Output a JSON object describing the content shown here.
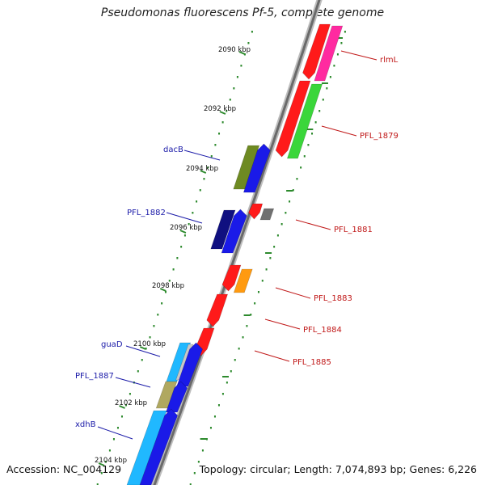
{
  "title": "Pseudomonas fluorescens Pf-5, complete genome",
  "footer": {
    "accession": "Accession: NC_004129",
    "topology": "Topology: circular; Length: 7,074,893 bp; Genes: 6,226"
  },
  "scale_ticks": [
    "2090 kbp",
    "2092 kbp",
    "2094 kbp",
    "2096 kbp",
    "2098 kbp",
    "2100 kbp",
    "2102 kbp",
    "2104 kbp"
  ],
  "genes_left": [
    {
      "label": "dacB"
    },
    {
      "label": "PFL_1882"
    },
    {
      "label": "guaD"
    },
    {
      "label": "PFL_1887"
    },
    {
      "label": "xdhB"
    }
  ],
  "genes_right": [
    {
      "label": "rlmL"
    },
    {
      "label": "PFL_1879"
    },
    {
      "label": "PFL_1881"
    },
    {
      "label": "PFL_1883"
    },
    {
      "label": "PFL_1884"
    },
    {
      "label": "PFL_1885"
    }
  ],
  "colors": {
    "backbone": "#8a8a8a",
    "tick_dots": "#2d8a2d",
    "left_label": "#1a1aa8",
    "right_label": "#c01818",
    "red": "#ff1a1a",
    "blue": "#1a1ae8",
    "navy": "#101080",
    "olive": "#6e8a22",
    "magenta": "#ff2aa0",
    "green": "#3ad63a",
    "cyan": "#20b8ff",
    "khaki": "#b0a860",
    "gray": "#707070",
    "orange": "#ff9a10"
  }
}
